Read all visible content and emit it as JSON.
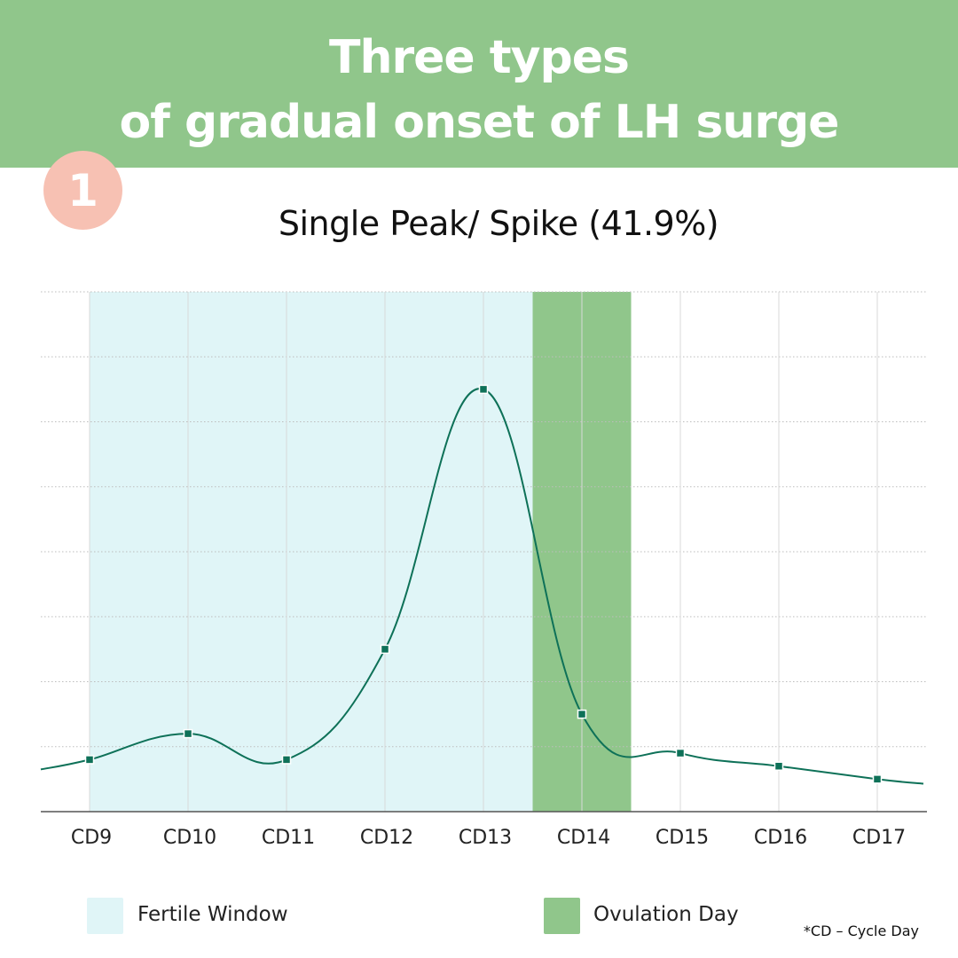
{
  "header": {
    "title_line1": "Three types",
    "title_line2": "of gradual onset of LH surge"
  },
  "badge": "1",
  "chart_data": {
    "type": "line",
    "title": "Single Peak/ Spike (41.9%)",
    "categories": [
      "CD9",
      "CD10",
      "CD11",
      "CD12",
      "CD13",
      "CD14",
      "CD15",
      "CD16",
      "CD17"
    ],
    "series": [
      {
        "values": [
          0.8,
          1.2,
          0.8,
          2.5,
          6.5,
          1.5,
          0.9,
          0.7,
          0.5
        ]
      }
    ],
    "ylim": [
      0,
      8
    ],
    "grid": true,
    "bands": [
      {
        "label": "Fertile Window",
        "from": "CD9",
        "to": "CD13",
        "color": "#e0f5f7"
      },
      {
        "label": "Ovulation Day",
        "from": "CD14",
        "to": "CD14",
        "color": "#90c68b"
      }
    ],
    "line_color": "#0e7158"
  },
  "legend": [
    {
      "label": "Fertile Window",
      "color": "#e0f5f7"
    },
    {
      "label": "Ovulation Day",
      "color": "#90c68b"
    }
  ],
  "footnote": "*CD – Cycle Day"
}
